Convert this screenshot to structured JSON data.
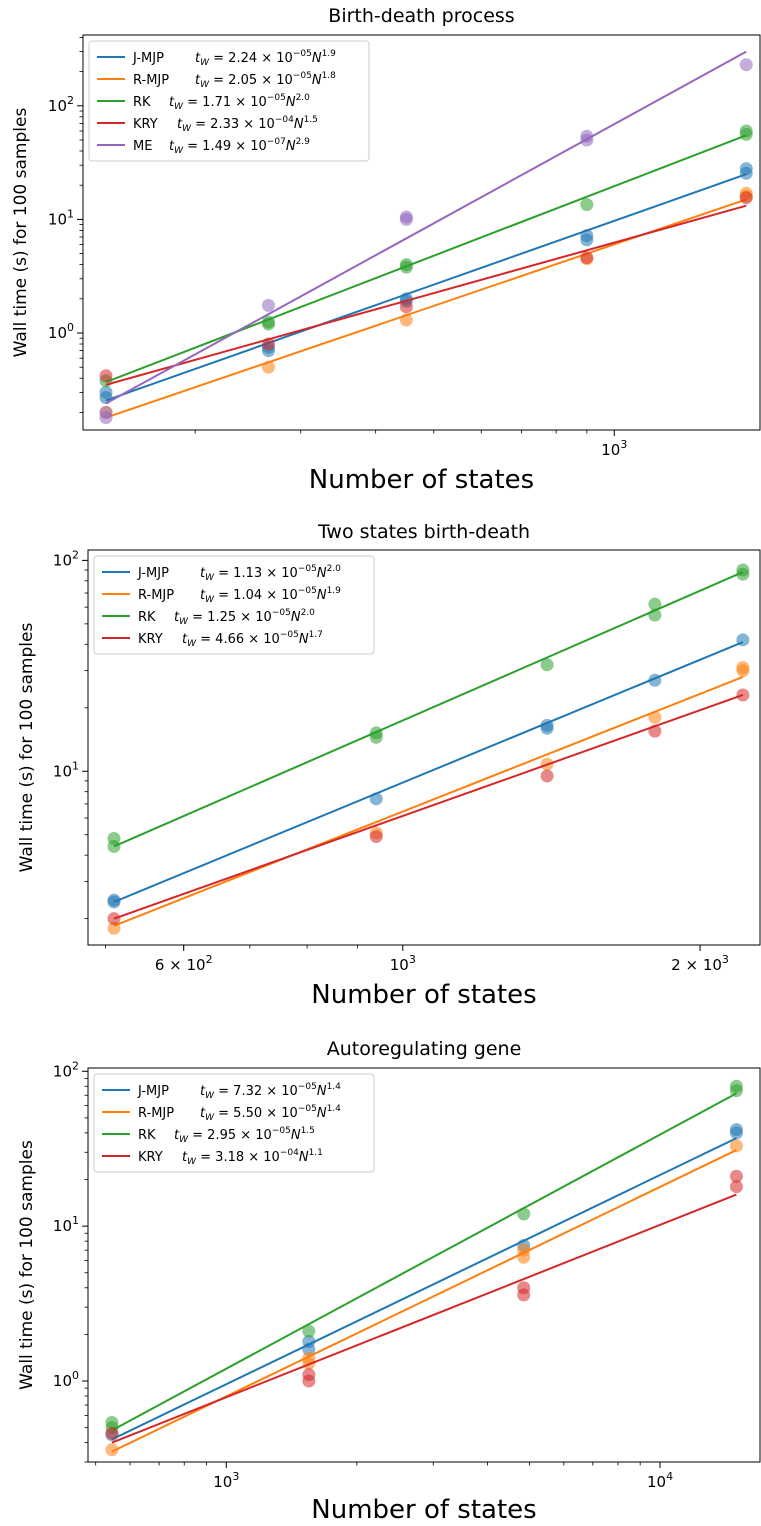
{
  "figure": {
    "colors": {
      "J-MJP": "#1f77b4",
      "R-MJP": "#ff7f0e",
      "RK": "#2ca02c",
      "KRY": "#d62728",
      "ME": "#9467bd"
    }
  },
  "chart_data": [
    {
      "type": "scatter",
      "title": "Birth-death process",
      "xlabel": "Number of states",
      "ylabel": "Wall time (s) for 100 samples",
      "x_scale": "log",
      "y_scale": "log",
      "xlim": [
        130,
        1750
      ],
      "ylim": [
        0.14,
        420
      ],
      "x_ticks": [
        {
          "value": 1000,
          "base": "10",
          "exp": "3"
        }
      ],
      "y_ticks": [
        {
          "value": 1,
          "base": "10",
          "exp": "0"
        },
        {
          "value": 10,
          "base": "10",
          "exp": "1"
        },
        {
          "value": 100,
          "base": "10",
          "exp": "2"
        }
      ],
      "legend_position": "top-left",
      "series": [
        {
          "name": "J-MJP",
          "formula": {
            "coef": "2.24",
            "exp10": "−05",
            "power": "1.9"
          },
          "fit": [
            [
              142,
              0.255
            ],
            [
              1660,
              25
            ]
          ],
          "points": [
            [
              142,
              0.3
            ],
            [
              142,
              0.27
            ],
            [
              265,
              0.7
            ],
            [
              265,
              0.75
            ],
            [
              450,
              2.0
            ],
            [
              450,
              1.9
            ],
            [
              900,
              7.2
            ],
            [
              900,
              6.6
            ],
            [
              1660,
              28
            ],
            [
              1660,
              25.5
            ]
          ]
        },
        {
          "name": "R-MJP",
          "formula": {
            "coef": "2.05",
            "exp10": "−05",
            "power": "1.8"
          },
          "fit": [
            [
              142,
              0.18
            ],
            [
              1660,
              15
            ]
          ],
          "points": [
            [
              142,
              0.2
            ],
            [
              265,
              0.5
            ],
            [
              450,
              1.3
            ],
            [
              900,
              4.5
            ],
            [
              1660,
              16
            ],
            [
              1660,
              17
            ]
          ]
        },
        {
          "name": "RK",
          "formula": {
            "coef": "1.71",
            "exp10": "−05",
            "power": "2.0"
          },
          "fit": [
            [
              142,
              0.37
            ],
            [
              1660,
              55
            ]
          ],
          "points": [
            [
              142,
              0.38
            ],
            [
              265,
              1.2
            ],
            [
              265,
              1.25
            ],
            [
              450,
              3.8
            ],
            [
              450,
              4.0
            ],
            [
              900,
              13.5
            ],
            [
              1660,
              60
            ],
            [
              1660,
              56
            ]
          ]
        },
        {
          "name": "KRY",
          "formula": {
            "coef": "2.33",
            "exp10": "−04",
            "power": "1.5"
          },
          "fit": [
            [
              142,
              0.35
            ],
            [
              1660,
              13.2
            ]
          ],
          "points": [
            [
              142,
              0.42
            ],
            [
              265,
              0.8
            ],
            [
              450,
              1.7
            ],
            [
              900,
              4.6
            ],
            [
              1660,
              15.5
            ]
          ]
        },
        {
          "name": "ME",
          "formula": {
            "coef": "1.49",
            "exp10": "−07",
            "power": "2.9"
          },
          "fit": [
            [
              142,
              0.24
            ],
            [
              1660,
              300
            ]
          ],
          "points": [
            [
              142,
              0.18
            ],
            [
              142,
              0.2
            ],
            [
              265,
              1.75
            ],
            [
              450,
              10.5
            ],
            [
              450,
              10.0
            ],
            [
              900,
              50
            ],
            [
              900,
              54
            ],
            [
              1660,
              230
            ]
          ]
        }
      ]
    },
    {
      "type": "scatter",
      "title": "Two states birth-death",
      "xlabel": "Number of states",
      "ylabel": "Wall time (s) for 100 samples",
      "x_scale": "log",
      "y_scale": "log",
      "xlim": [
        480,
        2300
      ],
      "ylim": [
        1.5,
        112
      ],
      "x_ticks": [
        {
          "value": 600,
          "coef": "6",
          "base": "10",
          "exp": "2"
        },
        {
          "value": 1000,
          "base": "10",
          "exp": "3"
        },
        {
          "value": 2000,
          "coef": "2",
          "base": "10",
          "exp": "3"
        }
      ],
      "y_ticks": [
        {
          "value": 10,
          "base": "10",
          "exp": "1"
        },
        {
          "value": 100,
          "base": "10",
          "exp": "2"
        }
      ],
      "legend_position": "top-left",
      "series": [
        {
          "name": "J-MJP",
          "formula": {
            "coef": "1.13",
            "exp10": "−05",
            "power": "2.0"
          },
          "fit": [
            [
              510,
              2.4
            ],
            [
              2210,
              41
            ]
          ],
          "points": [
            [
              510,
              2.45
            ],
            [
              510,
              2.4
            ],
            [
              940,
              7.4
            ],
            [
              1400,
              16
            ],
            [
              1400,
              16.5
            ],
            [
              1800,
              27
            ],
            [
              2210,
              42
            ]
          ]
        },
        {
          "name": "R-MJP",
          "formula": {
            "coef": "1.04",
            "exp10": "−05",
            "power": "1.9"
          },
          "fit": [
            [
              510,
              1.85
            ],
            [
              2210,
              28
            ]
          ],
          "points": [
            [
              510,
              1.8
            ],
            [
              940,
              5.1
            ],
            [
              1400,
              10.8
            ],
            [
              1800,
              18
            ],
            [
              2210,
              30
            ],
            [
              2210,
              31
            ]
          ]
        },
        {
          "name": "RK",
          "formula": {
            "coef": "1.25",
            "exp10": "−05",
            "power": "2.0"
          },
          "fit": [
            [
              510,
              4.4
            ],
            [
              2210,
              88
            ]
          ],
          "points": [
            [
              510,
              4.4
            ],
            [
              510,
              4.8
            ],
            [
              940,
              14.5
            ],
            [
              940,
              15.2
            ],
            [
              1400,
              32
            ],
            [
              1800,
              55
            ],
            [
              1800,
              62
            ],
            [
              2210,
              86
            ],
            [
              2210,
              90
            ]
          ]
        },
        {
          "name": "KRY",
          "formula": {
            "coef": "4.66",
            "exp10": "−05",
            "power": "1.7"
          },
          "fit": [
            [
              510,
              2.0
            ],
            [
              2210,
              23
            ]
          ],
          "points": [
            [
              510,
              2.0
            ],
            [
              940,
              4.9
            ],
            [
              1400,
              9.5
            ],
            [
              1800,
              15.5
            ],
            [
              2210,
              23
            ]
          ]
        }
      ]
    },
    {
      "type": "scatter",
      "title": "Autoregulating gene",
      "xlabel": "Number of states",
      "ylabel": "Wall time (s) for 100 samples",
      "x_scale": "log",
      "y_scale": "log",
      "xlim": [
        480,
        17000
      ],
      "ylim": [
        0.3,
        105
      ],
      "x_ticks": [
        {
          "value": 1000,
          "base": "10",
          "exp": "3"
        },
        {
          "value": 10000,
          "base": "10",
          "exp": "4"
        }
      ],
      "y_ticks": [
        {
          "value": 1,
          "base": "10",
          "exp": "0"
        },
        {
          "value": 10,
          "base": "10",
          "exp": "1"
        },
        {
          "value": 100,
          "base": "10",
          "exp": "2"
        }
      ],
      "legend_position": "top-left",
      "series": [
        {
          "name": "J-MJP",
          "formula": {
            "coef": "7.32",
            "exp10": "−05",
            "power": "1.4"
          },
          "fit": [
            [
              545,
              0.42
            ],
            [
              15000,
              37
            ]
          ],
          "points": [
            [
              545,
              0.45
            ],
            [
              1550,
              1.6
            ],
            [
              1550,
              1.8
            ],
            [
              4850,
              7.5
            ],
            [
              15000,
              42
            ],
            [
              15000,
              40
            ]
          ]
        },
        {
          "name": "R-MJP",
          "formula": {
            "coef": "5.50",
            "exp10": "−05",
            "power": "1.4"
          },
          "fit": [
            [
              545,
              0.35
            ],
            [
              15000,
              31
            ]
          ],
          "points": [
            [
              545,
              0.36
            ],
            [
              1550,
              1.3
            ],
            [
              1550,
              1.4
            ],
            [
              4850,
              6.3
            ],
            [
              4850,
              7.0
            ],
            [
              15000,
              33
            ]
          ]
        },
        {
          "name": "RK",
          "formula": {
            "coef": "2.95",
            "exp10": "−05",
            "power": "1.5"
          },
          "fit": [
            [
              545,
              0.48
            ],
            [
              15000,
              72
            ]
          ],
          "points": [
            [
              545,
              0.5
            ],
            [
              545,
              0.54
            ],
            [
              1550,
              2.1
            ],
            [
              4850,
              12
            ],
            [
              15000,
              75
            ],
            [
              15000,
              80
            ]
          ]
        },
        {
          "name": "KRY",
          "formula": {
            "coef": "3.18",
            "exp10": "−04",
            "power": "1.1"
          },
          "fit": [
            [
              545,
              0.4
            ],
            [
              15000,
              16
            ]
          ],
          "points": [
            [
              545,
              0.46
            ],
            [
              1550,
              1.0
            ],
            [
              1550,
              1.1
            ],
            [
              4850,
              3.6
            ],
            [
              4850,
              4.0
            ],
            [
              15000,
              18
            ],
            [
              15000,
              21
            ]
          ]
        }
      ]
    }
  ]
}
